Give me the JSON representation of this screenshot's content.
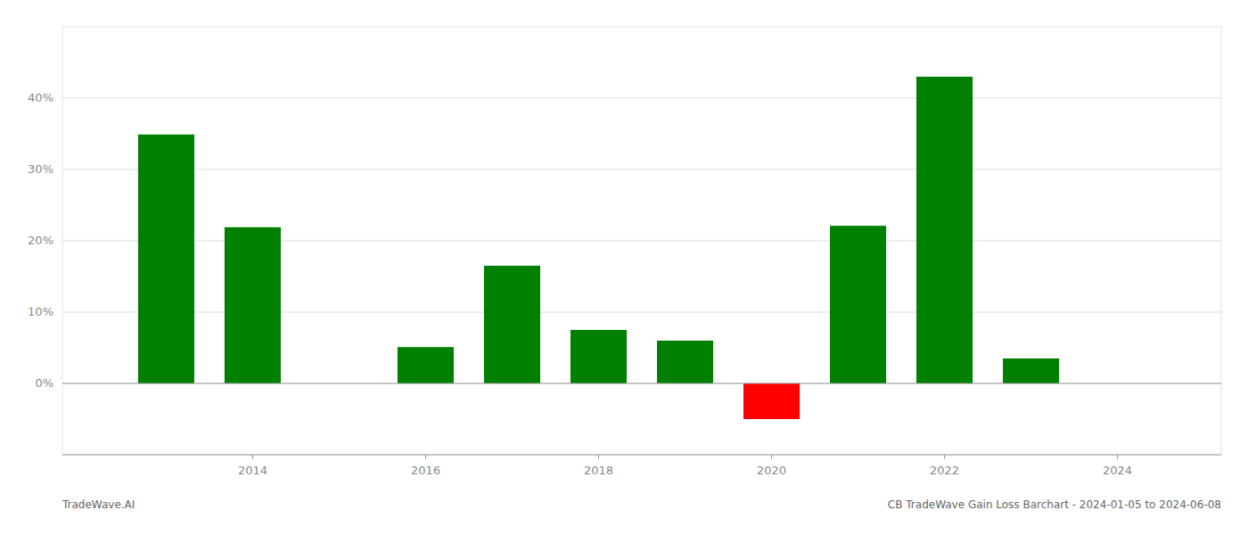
{
  "chart_data": {
    "type": "bar",
    "title": "CB TradeWave Gain Loss Barchart - 2024-01-05 to 2024-06-08",
    "annotations": [
      "TradeWave.AI"
    ],
    "x": [
      2013,
      2014,
      2016,
      2017,
      2018,
      2019,
      2020,
      2021,
      2022,
      2023
    ],
    "values": [
      0.349,
      0.219,
      0.051,
      0.165,
      0.075,
      0.06,
      -0.05,
      0.221,
      0.43,
      0.035
    ],
    "colors": [
      "#008000",
      "#008000",
      "#008000",
      "#008000",
      "#008000",
      "#008000",
      "#ff0000",
      "#008000",
      "#008000",
      "#008000"
    ],
    "xlim": [
      2011.8,
      2025.2
    ],
    "ylim": [
      -0.1,
      0.5
    ],
    "xticks": [
      2014,
      2016,
      2018,
      2020,
      2022,
      2024
    ],
    "yticks": [
      {
        "value": 0.0,
        "label": "0%"
      },
      {
        "value": 0.1,
        "label": "10%"
      },
      {
        "value": 0.2,
        "label": "20%"
      },
      {
        "value": 0.3,
        "label": "30%"
      },
      {
        "value": 0.4,
        "label": "40%"
      }
    ],
    "grid": true
  }
}
